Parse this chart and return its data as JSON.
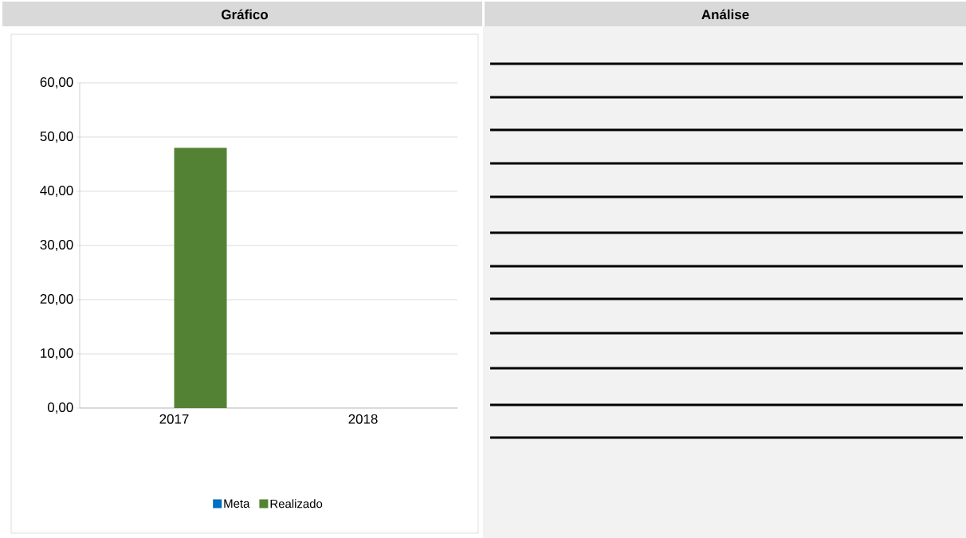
{
  "chart_data": {
    "type": "bar",
    "title": "Gráfico",
    "annotations": [
      "Análise"
    ],
    "categories": [
      "2017",
      "2018"
    ],
    "series": [
      {
        "name": "Meta",
        "color": "#0070c0",
        "values": [
          null,
          null
        ]
      },
      {
        "name": "Realizado",
        "color": "#548235",
        "values": [
          48,
          null
        ]
      }
    ],
    "ylim": [
      0,
      60
    ],
    "yticks": [
      {
        "value": 0,
        "label": "0,00"
      },
      {
        "value": 10,
        "label": "10,00"
      },
      {
        "value": 20,
        "label": "20,00"
      },
      {
        "value": 30,
        "label": "30,00"
      },
      {
        "value": 40,
        "label": "40,00"
      },
      {
        "value": 50,
        "label": "50,00"
      },
      {
        "value": 60,
        "label": "60,00"
      }
    ],
    "grid": "y",
    "legend": "bottom"
  }
}
